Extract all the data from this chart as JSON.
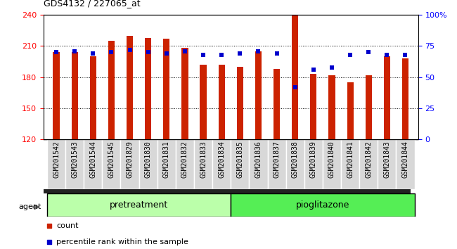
{
  "title": "GDS4132 / 227065_at",
  "samples": [
    "GSM201542",
    "GSM201543",
    "GSM201544",
    "GSM201545",
    "GSM201829",
    "GSM201830",
    "GSM201831",
    "GSM201832",
    "GSM201833",
    "GSM201834",
    "GSM201835",
    "GSM201836",
    "GSM201837",
    "GSM201838",
    "GSM201839",
    "GSM201840",
    "GSM201841",
    "GSM201842",
    "GSM201843",
    "GSM201844"
  ],
  "count_values": [
    204,
    204,
    200,
    215,
    220,
    218,
    217,
    208,
    192,
    192,
    190,
    205,
    188,
    240,
    183,
    182,
    175,
    182,
    200,
    198
  ],
  "percentile_values": [
    70,
    71,
    69,
    70,
    72,
    70,
    69,
    71,
    68,
    68,
    69,
    71,
    69,
    42,
    56,
    58,
    68,
    70,
    68,
    68
  ],
  "pretreatment_count": 10,
  "pioglitazone_count": 10,
  "ylim_left": [
    120,
    240
  ],
  "ylim_right": [
    0,
    100
  ],
  "yticks_left": [
    120,
    150,
    180,
    210,
    240
  ],
  "yticks_right": [
    0,
    25,
    50,
    75,
    100
  ],
  "ytick_labels_right": [
    "0",
    "25",
    "50",
    "75",
    "100%"
  ],
  "bar_color": "#cc2200",
  "dot_color": "#0000cc",
  "bar_width": 0.35,
  "pretreatment_label": "pretreatment",
  "pioglitazone_label": "pioglitazone",
  "agent_label": "agent",
  "legend_count": "count",
  "legend_percentile": "percentile rank within the sample",
  "background_color": "#ffffff",
  "pretreatment_bg": "#bbffaa",
  "pioglitazone_bg": "#55ee55",
  "xlabel_area_bg": "#cccccc",
  "dot_size": 25,
  "dot_marker": "s",
  "label_fontsize": 7,
  "agent_bar_bg": "#333333"
}
